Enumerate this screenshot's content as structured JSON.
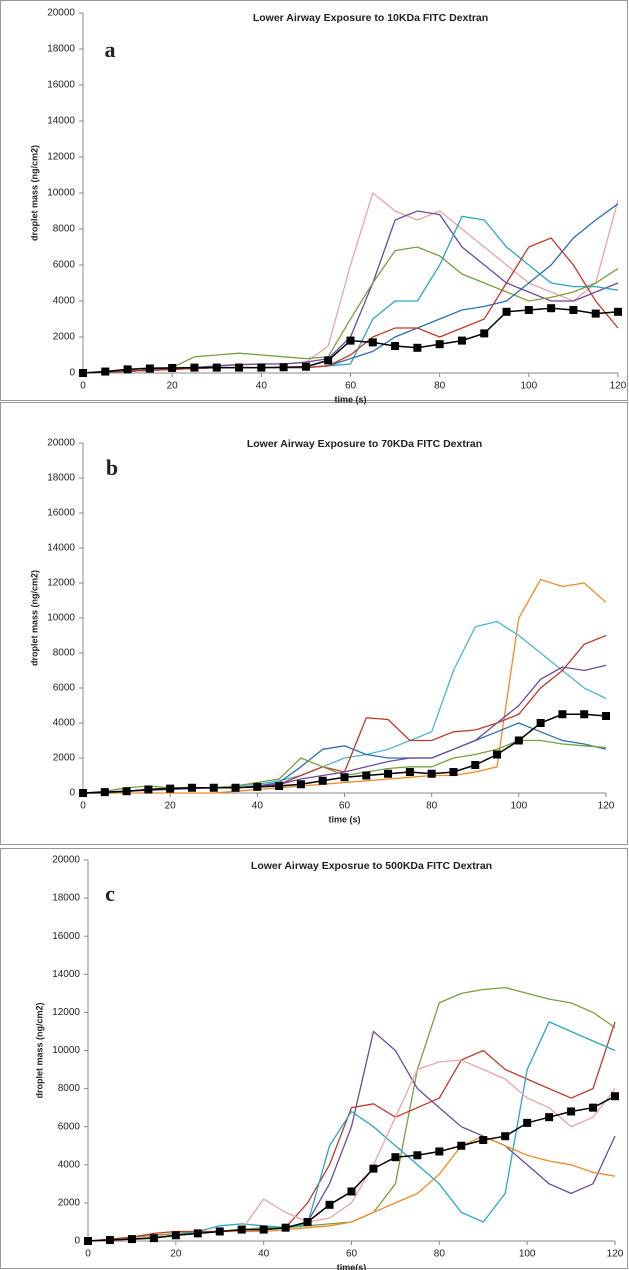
{
  "chart_data": [
    {
      "type": "line",
      "title": "Lower Airway Exposure to 10KDa FITC Dextran",
      "panel_label": "a",
      "x_label": "time (s)",
      "y_label": "droplet mass (ng/cm2)",
      "xlim": [
        0,
        120
      ],
      "xticks": [
        0,
        20,
        40,
        60,
        80,
        100,
        120
      ],
      "ylim": [
        0,
        20000
      ],
      "yticks": [
        0,
        2000,
        4000,
        6000,
        8000,
        10000,
        12000,
        14000,
        16000,
        18000,
        20000
      ],
      "x": [
        0,
        5,
        10,
        15,
        20,
        25,
        30,
        35,
        40,
        45,
        50,
        55,
        60,
        65,
        70,
        75,
        80,
        85,
        90,
        95,
        100,
        105,
        110,
        115,
        120
      ],
      "series": [
        {
          "color": "#e8a5a5",
          "values": [
            0,
            50,
            100,
            150,
            200,
            300,
            400,
            500,
            500,
            500,
            600,
            1500,
            6000,
            10000,
            9000,
            8500,
            9000,
            8000,
            7000,
            6000,
            5000,
            4500,
            4000,
            5000,
            9600
          ]
        },
        {
          "color": "#6b4c9a",
          "values": [
            0,
            50,
            100,
            150,
            200,
            300,
            400,
            450,
            500,
            500,
            600,
            800,
            2000,
            5000,
            8500,
            9000,
            8800,
            7000,
            6000,
            5000,
            4500,
            4000,
            4000,
            4500,
            5000
          ]
        },
        {
          "color": "#77a03e",
          "values": [
            0,
            100,
            200,
            300,
            300,
            900,
            1000,
            1100,
            1000,
            900,
            800,
            900,
            3000,
            5000,
            6800,
            7000,
            6500,
            5500,
            5000,
            4500,
            4000,
            4200,
            4500,
            5000,
            5800
          ]
        },
        {
          "color": "#2aa6c0",
          "values": [
            0,
            50,
            100,
            150,
            200,
            250,
            300,
            300,
            300,
            300,
            300,
            400,
            500,
            3000,
            4000,
            4000,
            6000,
            8700,
            8500,
            7000,
            6000,
            5000,
            4800,
            4800,
            4600
          ]
        },
        {
          "color": "#2e6fb0",
          "values": [
            0,
            50,
            100,
            150,
            200,
            250,
            300,
            300,
            300,
            300,
            300,
            400,
            800,
            1200,
            2000,
            2500,
            3000,
            3500,
            3700,
            4000,
            5000,
            6000,
            7500,
            8500,
            9400
          ]
        },
        {
          "color": "#c0392b",
          "values": [
            0,
            50,
            100,
            150,
            200,
            250,
            300,
            300,
            300,
            300,
            300,
            400,
            1000,
            2000,
            2500,
            2500,
            2000,
            2500,
            3000,
            5000,
            7000,
            7500,
            6000,
            4000,
            2500
          ]
        },
        {
          "color": "#000000",
          "marker": "square",
          "values": [
            0,
            80,
            200,
            250,
            280,
            300,
            300,
            300,
            300,
            320,
            350,
            700,
            1800,
            1700,
            1500,
            1400,
            1600,
            1800,
            2200,
            3400,
            3500,
            3600,
            3500,
            3300,
            3400
          ]
        }
      ]
    },
    {
      "type": "line",
      "title": "Lower Airway Exposure to 70KDa FITC Dextran",
      "panel_label": "b",
      "x_label": "time (s)",
      "y_label": "droplet mass (ng/cm2)",
      "xlim": [
        0,
        120
      ],
      "xticks": [
        0,
        20,
        40,
        60,
        80,
        100,
        120
      ],
      "ylim": [
        0,
        20000
      ],
      "yticks": [
        0,
        2000,
        4000,
        6000,
        8000,
        10000,
        12000,
        14000,
        16000,
        18000,
        20000
      ],
      "x": [
        0,
        5,
        10,
        15,
        20,
        25,
        30,
        35,
        40,
        45,
        50,
        55,
        60,
        65,
        70,
        75,
        80,
        85,
        90,
        95,
        100,
        105,
        110,
        115,
        120
      ],
      "series": [
        {
          "color": "#f08a24",
          "values": [
            0,
            0,
            0,
            0,
            0,
            0,
            0,
            100,
            200,
            300,
            400,
            500,
            600,
            700,
            800,
            900,
            1000,
            1000,
            1200,
            1500,
            10000,
            12200,
            11800,
            12000,
            10900
          ]
        },
        {
          "color": "#4bb6cc",
          "values": [
            0,
            0,
            100,
            200,
            300,
            300,
            300,
            400,
            500,
            700,
            1000,
            1500,
            2000,
            2200,
            2500,
            3000,
            3500,
            7000,
            9500,
            9800,
            9000,
            8000,
            7000,
            6000,
            5400
          ]
        },
        {
          "color": "#c0392b",
          "values": [
            0,
            0,
            100,
            200,
            300,
            300,
            300,
            300,
            400,
            500,
            1000,
            1500,
            1200,
            4300,
            4200,
            3000,
            3000,
            3500,
            3600,
            4000,
            4500,
            6000,
            7000,
            8500,
            9000
          ]
        },
        {
          "color": "#2e6fb0",
          "values": [
            0,
            50,
            100,
            200,
            300,
            300,
            300,
            300,
            400,
            600,
            1500,
            2500,
            2700,
            2200,
            2000,
            2000,
            2000,
            2500,
            3000,
            3500,
            4000,
            3500,
            3000,
            2800,
            2500
          ]
        },
        {
          "color": "#6b4c9a",
          "values": [
            0,
            0,
            100,
            150,
            200,
            250,
            300,
            300,
            400,
            500,
            800,
            1000,
            1200,
            1500,
            1800,
            2000,
            2000,
            2500,
            3000,
            4000,
            5000,
            6500,
            7200,
            7000,
            7300
          ]
        },
        {
          "color": "#77a03e",
          "values": [
            0,
            100,
            300,
            400,
            300,
            300,
            300,
            400,
            600,
            800,
            2000,
            1500,
            1000,
            1200,
            1400,
            1500,
            1500,
            2000,
            2200,
            2500,
            3000,
            3000,
            2800,
            2700,
            2600
          ]
        },
        {
          "color": "#000000",
          "marker": "square",
          "values": [
            0,
            50,
            100,
            200,
            250,
            300,
            300,
            300,
            350,
            400,
            500,
            700,
            900,
            1000,
            1100,
            1200,
            1100,
            1200,
            1600,
            2200,
            3000,
            4000,
            4500,
            4500,
            4400
          ]
        }
      ]
    },
    {
      "type": "line",
      "title": "Lower Airway Exposrue to 500KDa FITC Dextran",
      "panel_label": "c",
      "x_label": "time(s)",
      "y_label": "droplet mass (ng/cm2)",
      "xlim": [
        0,
        120
      ],
      "xticks": [
        0,
        20,
        40,
        60,
        80,
        100,
        120
      ],
      "ylim": [
        0,
        20000
      ],
      "yticks": [
        0,
        2000,
        4000,
        6000,
        8000,
        10000,
        12000,
        14000,
        16000,
        18000,
        20000
      ],
      "x": [
        0,
        5,
        10,
        15,
        20,
        25,
        30,
        35,
        40,
        45,
        50,
        55,
        60,
        65,
        70,
        75,
        80,
        85,
        90,
        95,
        100,
        105,
        110,
        115,
        120
      ],
      "series": [
        {
          "color": "#77a03e",
          "values": [
            0,
            100,
            200,
            300,
            400,
            500,
            500,
            600,
            700,
            700,
            800,
            900,
            1000,
            1500,
            3000,
            9000,
            12500,
            13000,
            13200,
            13300,
            13000,
            12700,
            12500,
            12000,
            11200
          ]
        },
        {
          "color": "#6b4c9a",
          "values": [
            0,
            50,
            100,
            200,
            300,
            400,
            500,
            600,
            600,
            700,
            1000,
            3000,
            6000,
            11000,
            10000,
            8000,
            7000,
            6000,
            5500,
            5000,
            4000,
            3000,
            2500,
            3000,
            5500
          ]
        },
        {
          "color": "#c0392b",
          "values": [
            0,
            100,
            200,
            400,
            500,
            500,
            500,
            600,
            600,
            700,
            2000,
            4000,
            7000,
            7200,
            6500,
            7000,
            7500,
            9500,
            10000,
            9000,
            8500,
            8000,
            7500,
            8000,
            11500
          ]
        },
        {
          "color": "#2aa6c0",
          "values": [
            0,
            50,
            100,
            200,
            300,
            500,
            800,
            900,
            800,
            700,
            900,
            5000,
            6800,
            6000,
            5000,
            4000,
            3000,
            1500,
            1000,
            2500,
            9000,
            11500,
            11000,
            10500,
            10000
          ]
        },
        {
          "color": "#e8a5a5",
          "values": [
            0,
            50,
            100,
            200,
            300,
            400,
            500,
            600,
            2200,
            1500,
            1000,
            1200,
            2000,
            4000,
            6500,
            9000,
            9400,
            9500,
            9000,
            8500,
            7500,
            7000,
            6000,
            6500,
            8000
          ]
        },
        {
          "color": "#f08a24",
          "values": [
            0,
            50,
            100,
            200,
            300,
            400,
            500,
            500,
            500,
            600,
            700,
            800,
            1000,
            1500,
            2000,
            2500,
            3500,
            5000,
            5500,
            5000,
            4500,
            4200,
            4000,
            3600,
            3400
          ]
        },
        {
          "color": "#000000",
          "marker": "square",
          "values": [
            0,
            50,
            100,
            150,
            300,
            400,
            500,
            600,
            600,
            700,
            1000,
            1900,
            2600,
            3800,
            4400,
            4500,
            4700,
            5000,
            5300,
            5500,
            6200,
            6500,
            6800,
            7000,
            7600
          ]
        }
      ]
    }
  ]
}
